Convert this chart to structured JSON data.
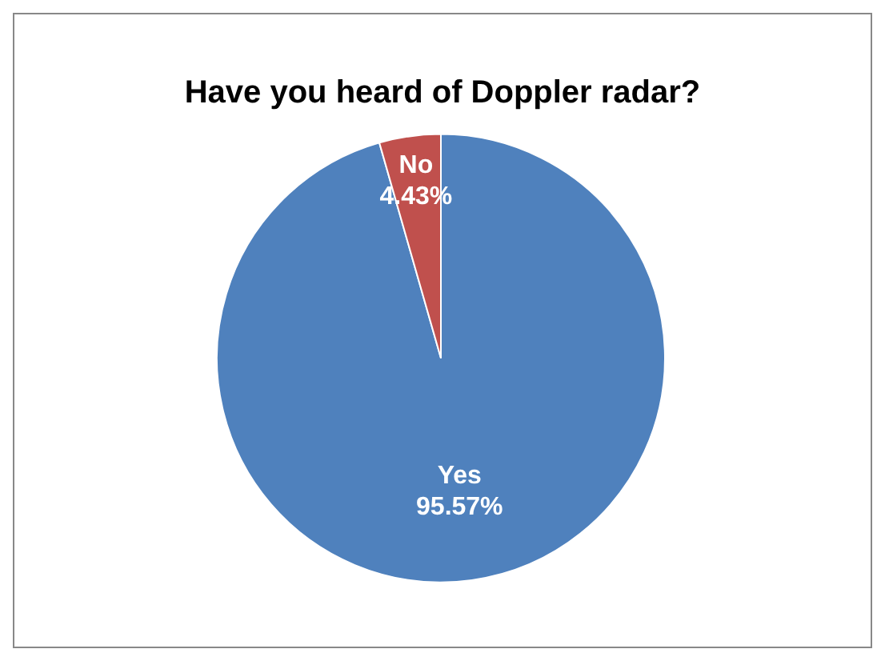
{
  "chart_data": {
    "type": "pie",
    "title": "Have you heard of Doppler radar?",
    "categories": [
      "Yes",
      "No"
    ],
    "values": [
      95.57,
      4.43
    ],
    "colors": [
      "#4f81bd",
      "#c0504d"
    ],
    "value_labels": [
      "95.57%",
      "4.43%"
    ]
  }
}
